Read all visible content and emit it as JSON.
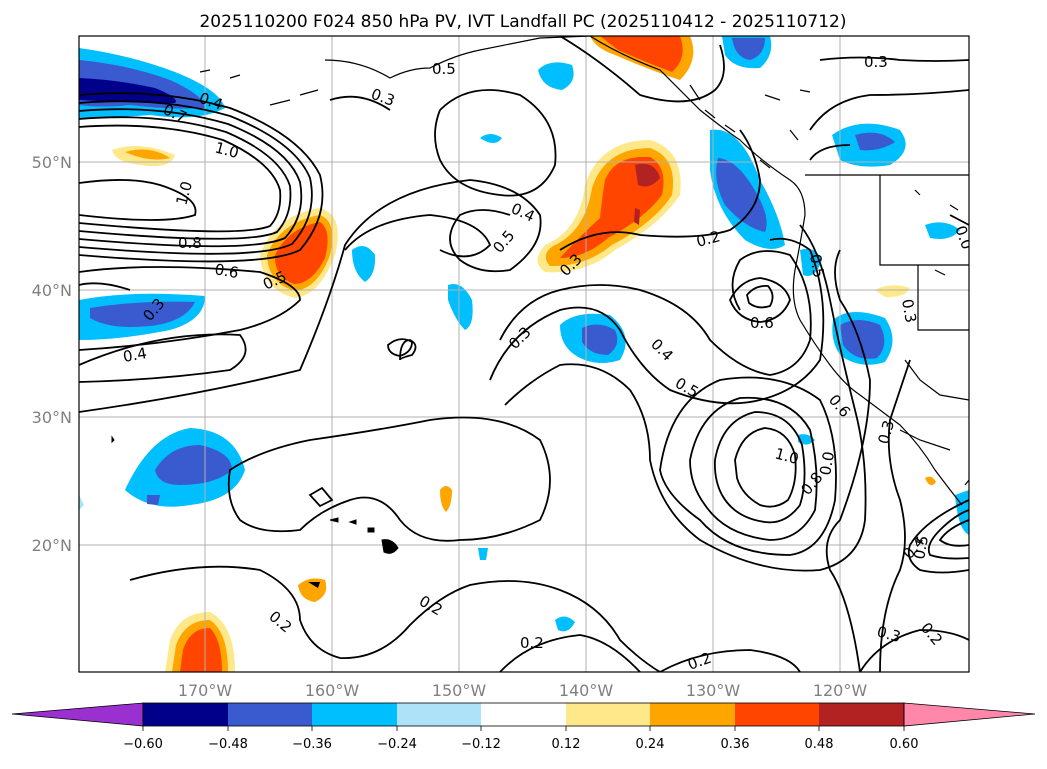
{
  "title": "2025110200 F024 850 hPa PV, IVT Landfall PC (2025110412 - 2025110712)",
  "lat_labels": [
    "50°N",
    "40°N",
    "30°N",
    "20°N"
  ],
  "lon_labels": [
    "170°W",
    "160°W",
    "150°W",
    "140°W",
    "130°W",
    "120°W"
  ],
  "colorbar": {
    "ticks": [
      "−0.60",
      "−0.48",
      "−0.36",
      "−0.24",
      "−0.12",
      "0.12",
      "0.24",
      "0.36",
      "0.48",
      "0.60"
    ],
    "colors": [
      "#9b30d0",
      "#00008b",
      "#3a5bcf",
      "#00bfff",
      "#aee2f8",
      "#ffffff",
      "#ffe88a",
      "#ffa500",
      "#ff4500",
      "#b22222",
      "#ff88aa"
    ]
  },
  "contour_labels": [
    "0.5",
    "0.3",
    "0.3",
    "0.4",
    "0.7",
    "1.0",
    "1.0",
    "0.8",
    "0.6",
    "0.5",
    "0.4",
    "0.5",
    "0.3",
    "0.2",
    "0.3",
    "0.4",
    "0.4",
    "0.5",
    "0.6",
    "0.5",
    "0.3",
    "0.6",
    "1.0",
    "0.8",
    "0.0",
    "0.3",
    "0.4",
    "0.5",
    "0.2",
    "0.2",
    "0.2",
    "0.2",
    "0.3",
    "0.2",
    "0.3",
    "0.0"
  ],
  "colors": {
    "contour": "#000000",
    "grid": "#b0b0b0",
    "coast": "#000000"
  }
}
